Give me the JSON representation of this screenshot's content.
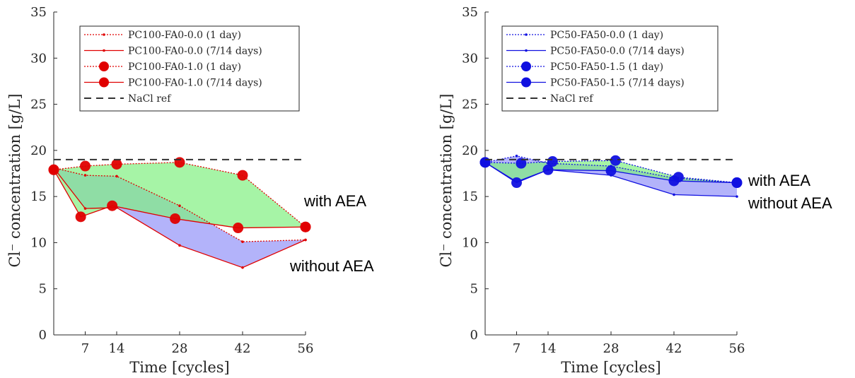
{
  "chart_data": [
    {
      "type": "line",
      "xlabel": "Time [cycles]",
      "ylabel": "Cl⁻ concentration [g/L]",
      "xlim": [
        0,
        56
      ],
      "ylim": [
        0,
        35
      ],
      "xticks": [
        7,
        14,
        28,
        42,
        56
      ],
      "yticks": [
        0,
        5,
        10,
        15,
        20,
        25,
        30,
        35
      ],
      "color": "#e00000",
      "legend_position": "top",
      "series": [
        {
          "name": "PC100-FA0-0.0 (1 day)",
          "style": "dotted-small",
          "points": [
            [
              0,
              18.1
            ],
            [
              7,
              17.3
            ],
            [
              14,
              17.2
            ],
            [
              28,
              14.0
            ],
            [
              42,
              10.1
            ],
            [
              56,
              10.3
            ]
          ]
        },
        {
          "name": "PC100-FA0-0.0 (7/14 days)",
          "style": "solid-small",
          "points": [
            [
              0,
              18.1
            ],
            [
              7,
              13.7
            ],
            [
              14,
              13.8
            ],
            [
              28,
              9.7
            ],
            [
              42,
              7.3
            ],
            [
              56,
              10.3
            ]
          ]
        },
        {
          "name": "PC100-FA0-1.0 (1 day)",
          "style": "dotted-large",
          "points": [
            [
              0,
              17.9
            ],
            [
              7,
              18.3
            ],
            [
              14,
              18.5
            ],
            [
              28,
              18.7
            ],
            [
              42,
              17.3
            ],
            [
              56,
              11.7
            ]
          ]
        },
        {
          "name": "PC100-FA0-1.0 (7/14 days)",
          "style": "solid-large",
          "points": [
            [
              0,
              17.9
            ],
            [
              6,
              12.8
            ],
            [
              13,
              14.0
            ],
            [
              27,
              12.6
            ],
            [
              41,
              11.6
            ],
            [
              56,
              11.7
            ]
          ]
        },
        {
          "name": "NaCl ref",
          "style": "dashed",
          "points": [
            [
              0,
              19.0
            ],
            [
              56,
              19.0
            ]
          ]
        }
      ],
      "bands": [
        {
          "label": "with AEA",
          "fill": "#80f080"
        },
        {
          "label": "without AEA",
          "fill": "#9a9af8"
        }
      ],
      "annotations": [
        "with AEA",
        "without AEA"
      ]
    },
    {
      "type": "line",
      "xlabel": "Time [cycles]",
      "ylabel": "Cl⁻ concentration [g/L]",
      "xlim": [
        0,
        56
      ],
      "ylim": [
        0,
        35
      ],
      "xticks": [
        7,
        14,
        28,
        42,
        56
      ],
      "yticks": [
        0,
        5,
        10,
        15,
        20,
        25,
        30,
        35
      ],
      "color": "#1010e0",
      "legend_position": "top",
      "series": [
        {
          "name": "PC50-FA50-0.0 (1 day)",
          "style": "dotted-small",
          "points": [
            [
              0,
              18.7
            ],
            [
              7,
              19.4
            ],
            [
              14,
              18.6
            ],
            [
              28,
              18.3
            ],
            [
              42,
              17.0
            ],
            [
              56,
              16.5
            ]
          ]
        },
        {
          "name": "PC50-FA50-0.0 (7/14 days)",
          "style": "solid-small",
          "points": [
            [
              0,
              18.7
            ],
            [
              7,
              16.6
            ],
            [
              14,
              17.9
            ],
            [
              28,
              17.3
            ],
            [
              42,
              15.2
            ],
            [
              56,
              15.0
            ]
          ]
        },
        {
          "name": "PC50-FA50-1.5 (1 day)",
          "style": "dotted-large",
          "points": [
            [
              0,
              18.7
            ],
            [
              8,
              18.6
            ],
            [
              15,
              18.8
            ],
            [
              29,
              18.9
            ],
            [
              43,
              17.1
            ],
            [
              56,
              16.5
            ]
          ]
        },
        {
          "name": "PC50-FA50-1.5 (7/14 days)",
          "style": "solid-large",
          "points": [
            [
              0,
              18.7
            ],
            [
              7,
              16.5
            ],
            [
              14,
              17.9
            ],
            [
              28,
              17.8
            ],
            [
              42,
              16.7
            ],
            [
              56,
              16.5
            ]
          ]
        },
        {
          "name": "NaCl ref",
          "style": "dashed",
          "points": [
            [
              0,
              19.0
            ],
            [
              56,
              19.0
            ]
          ]
        }
      ],
      "bands": [
        {
          "label": "with AEA",
          "fill": "#80f080"
        },
        {
          "label": "without AEA",
          "fill": "#9a9af8"
        }
      ],
      "annotations": [
        "with AEA",
        "without AEA"
      ]
    }
  ]
}
